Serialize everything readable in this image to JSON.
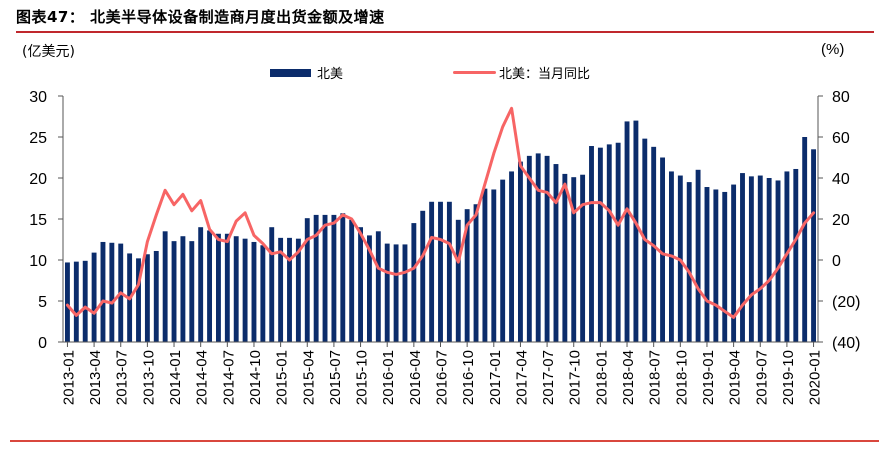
{
  "header": {
    "title": "图表47：  北美半导体设备制造商月度出货金额及增速"
  },
  "colors": {
    "bar": "#0b2c6b",
    "line": "#f76565",
    "rule": "#c0282d",
    "axis": "#555555"
  },
  "chart_data": {
    "type": "bar+line",
    "title": "北美半导体设备制造商月度出货金额及增速",
    "left_unit": "(亿美元)",
    "right_unit": "(%)",
    "legend": [
      "北美",
      "北美：当月同比"
    ],
    "legend_position": "top-center",
    "grid": false,
    "left_axis": {
      "min": 0,
      "max": 30,
      "ticks": [
        "0",
        "5",
        "10",
        "15",
        "20",
        "25",
        "30"
      ],
      "tick_values": [
        0,
        5,
        10,
        15,
        20,
        25,
        30
      ]
    },
    "right_axis": {
      "min": -40,
      "max": 80,
      "ticks": [
        "(40)",
        "(20)",
        "0",
        "20",
        "40",
        "60",
        "80"
      ],
      "tick_values": [
        -40,
        -20,
        0,
        20,
        40,
        60,
        80
      ]
    },
    "x_tick_labels": [
      "2013-01",
      "2013-04",
      "2013-07",
      "2013-10",
      "2014-01",
      "2014-04",
      "2014-07",
      "2014-10",
      "2015-01",
      "2015-04",
      "2015-07",
      "2015-10",
      "2016-01",
      "2016-04",
      "2016-07",
      "2016-10",
      "2017-01",
      "2017-04",
      "2017-07",
      "2017-10",
      "2018-01",
      "2018-04",
      "2018-07",
      "2018-10",
      "2019-01",
      "2019-04",
      "2019-07",
      "2019-10",
      "2020-01"
    ],
    "x_start": "2013-01",
    "x_end": "2020-01",
    "series": [
      {
        "name": "北美",
        "type": "bar",
        "axis": "left",
        "values": [
          9.7,
          9.8,
          9.9,
          10.9,
          12.2,
          12.1,
          12.0,
          10.8,
          10.2,
          10.7,
          11.1,
          13.5,
          12.3,
          12.9,
          12.3,
          14.0,
          13.6,
          13.2,
          13.2,
          12.9,
          12.6,
          12.2,
          11.8,
          14.0,
          12.7,
          12.7,
          12.6,
          15.1,
          15.5,
          15.5,
          15.5,
          15.7,
          14.9,
          14.0,
          13.0,
          13.5,
          12.0,
          11.9,
          11.9,
          14.5,
          16.0,
          17.1,
          17.1,
          17.1,
          14.9,
          16.2,
          16.8,
          18.7,
          18.6,
          19.8,
          20.8,
          22.0,
          22.7,
          23.0,
          22.7,
          21.7,
          20.5,
          20.1,
          20.4,
          23.9,
          23.7,
          24.1,
          24.3,
          26.9,
          27.0,
          24.8,
          23.8,
          22.5,
          20.8,
          20.3,
          19.5,
          21.0,
          18.9,
          18.6,
          18.3,
          19.2,
          20.6,
          20.2,
          20.3,
          20.0,
          19.7,
          20.8,
          21.1,
          25.0,
          23.5
        ]
      },
      {
        "name": "北美：当月同比",
        "type": "line",
        "axis": "right",
        "values": [
          -22,
          -27,
          -23,
          -26,
          -20,
          -21,
          -16,
          -19,
          -12,
          9,
          22,
          34,
          27,
          32,
          24,
          29,
          15,
          10,
          9,
          19,
          23,
          12,
          8,
          3,
          4,
          0,
          4,
          10,
          12,
          17,
          18,
          22,
          20,
          13,
          5,
          -4,
          -6,
          -7,
          -6,
          -4,
          2,
          11,
          10,
          8,
          -1,
          17,
          22,
          37,
          52,
          65,
          74,
          46,
          40,
          34,
          33,
          28,
          37,
          23,
          27,
          28,
          28,
          24,
          17,
          25,
          18,
          10,
          7,
          3,
          2,
          0,
          -6,
          -14,
          -20,
          -22,
          -25,
          -28,
          -22,
          -17,
          -14,
          -10,
          -4,
          3,
          10,
          18,
          23
        ]
      }
    ]
  }
}
